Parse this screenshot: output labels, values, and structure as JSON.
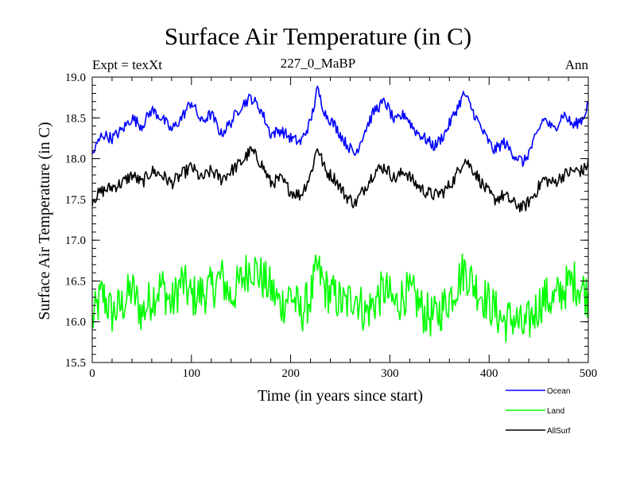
{
  "header": {
    "title": "Surface Air Temperature (in C)",
    "experiment": "Expt = texXt",
    "subtitle": "227_0_MaBP",
    "season": "Ann"
  },
  "chart_data": {
    "type": "line",
    "title": "Surface Air Temperature (in C)",
    "xlabel": "Time (in years since start)",
    "ylabel": "Surface Air Temperature (in C)",
    "xlim": [
      0,
      500
    ],
    "ylim": [
      15.5,
      19.0
    ],
    "xticks": [
      0,
      100,
      200,
      300,
      400,
      500
    ],
    "yticks": [
      15.5,
      16.0,
      16.5,
      17.0,
      17.5,
      18.0,
      18.5,
      19.0
    ],
    "ytick_labels": [
      "15.5",
      "16.0",
      "16.5",
      "17.0",
      "17.5",
      "18.0",
      "18.5",
      "19.0"
    ],
    "grid": false,
    "legend_position": "bottom-right, below plot",
    "series": [
      {
        "name": "Ocean",
        "color": "#0000ff",
        "x": [
          0,
          10,
          20,
          30,
          40,
          50,
          60,
          70,
          80,
          90,
          100,
          110,
          120,
          130,
          140,
          150,
          160,
          170,
          180,
          190,
          200,
          210,
          220,
          227,
          235,
          245,
          255,
          265,
          275,
          285,
          295,
          305,
          315,
          325,
          335,
          345,
          355,
          365,
          375,
          385,
          395,
          405,
          415,
          425,
          435,
          445,
          455,
          465,
          475,
          485,
          495,
          500
        ],
        "values": [
          18.05,
          18.3,
          18.25,
          18.35,
          18.5,
          18.4,
          18.6,
          18.5,
          18.35,
          18.5,
          18.7,
          18.45,
          18.55,
          18.3,
          18.45,
          18.65,
          18.75,
          18.6,
          18.3,
          18.35,
          18.25,
          18.2,
          18.45,
          18.85,
          18.55,
          18.4,
          18.2,
          18.05,
          18.35,
          18.6,
          18.7,
          18.45,
          18.55,
          18.35,
          18.25,
          18.15,
          18.3,
          18.55,
          18.8,
          18.55,
          18.3,
          18.1,
          18.2,
          18.05,
          17.95,
          18.2,
          18.5,
          18.35,
          18.55,
          18.4,
          18.5,
          18.7
        ]
      },
      {
        "name": "Land",
        "color": "#00ff00",
        "x": [
          0,
          10,
          20,
          30,
          40,
          50,
          60,
          70,
          80,
          90,
          100,
          110,
          120,
          130,
          140,
          150,
          160,
          170,
          180,
          190,
          200,
          210,
          220,
          227,
          235,
          245,
          255,
          265,
          275,
          285,
          295,
          305,
          315,
          325,
          335,
          345,
          355,
          365,
          375,
          385,
          395,
          405,
          415,
          425,
          435,
          445,
          455,
          465,
          475,
          485,
          495,
          500
        ],
        "values": [
          16.0,
          16.35,
          16.1,
          16.2,
          16.4,
          16.1,
          16.3,
          16.45,
          16.2,
          16.5,
          16.3,
          16.35,
          16.4,
          16.55,
          16.3,
          16.5,
          16.7,
          16.55,
          16.4,
          16.2,
          16.35,
          16.1,
          16.3,
          16.65,
          16.4,
          16.3,
          16.2,
          16.35,
          16.1,
          16.25,
          16.4,
          16.2,
          16.35,
          16.3,
          16.1,
          16.05,
          16.2,
          16.4,
          16.65,
          16.45,
          16.3,
          16.15,
          16.0,
          16.05,
          15.9,
          16.1,
          16.3,
          16.25,
          16.4,
          16.5,
          16.4,
          16.3
        ]
      },
      {
        "name": "AllSurf",
        "color": "#000000",
        "x": [
          0,
          10,
          20,
          30,
          40,
          50,
          60,
          70,
          80,
          90,
          100,
          110,
          120,
          130,
          140,
          150,
          160,
          170,
          180,
          190,
          200,
          210,
          220,
          227,
          235,
          245,
          255,
          265,
          275,
          285,
          295,
          305,
          315,
          325,
          335,
          345,
          355,
          365,
          375,
          385,
          395,
          405,
          415,
          425,
          435,
          445,
          455,
          465,
          475,
          485,
          495,
          500
        ],
        "values": [
          17.5,
          17.6,
          17.65,
          17.7,
          17.8,
          17.7,
          17.85,
          17.8,
          17.7,
          17.8,
          17.9,
          17.75,
          17.85,
          17.75,
          17.85,
          17.95,
          18.1,
          17.95,
          17.7,
          17.75,
          17.6,
          17.55,
          17.8,
          18.15,
          17.85,
          17.75,
          17.55,
          17.45,
          17.65,
          17.85,
          17.9,
          17.75,
          17.85,
          17.7,
          17.6,
          17.55,
          17.6,
          17.75,
          18.0,
          17.85,
          17.65,
          17.5,
          17.55,
          17.45,
          17.4,
          17.55,
          17.75,
          17.7,
          17.8,
          17.85,
          17.85,
          17.95
        ]
      }
    ]
  }
}
